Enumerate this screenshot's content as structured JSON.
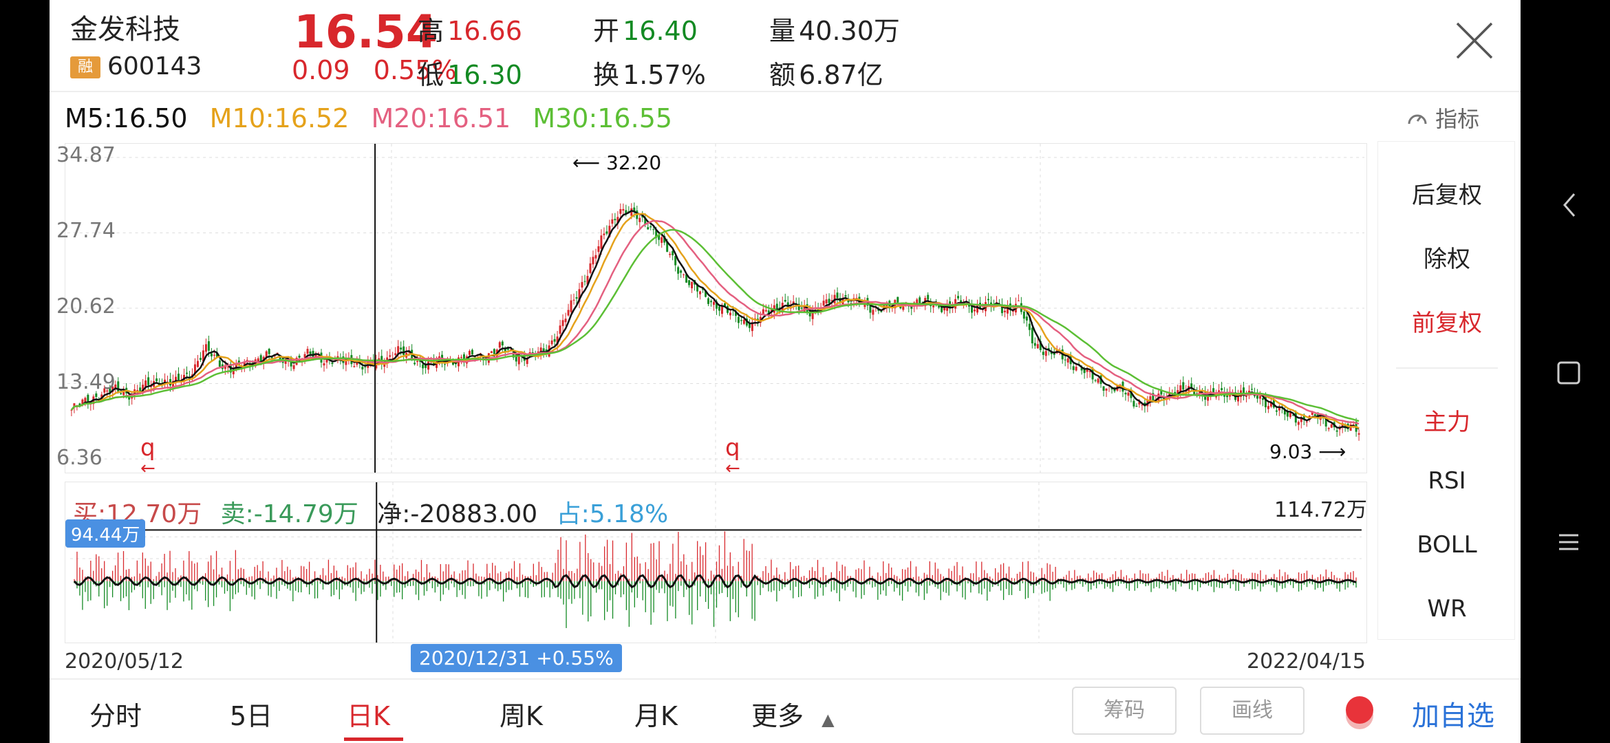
{
  "header": {
    "name": "金发科技",
    "badge": "融",
    "code": "600143",
    "price": "16.54",
    "change": "0.09",
    "change_pct": "0.55%",
    "high_label": "高",
    "high": "16.66",
    "low_label": "低",
    "low": "16.30",
    "open_label": "开",
    "open": "16.40",
    "turnover_label": "换",
    "turnover": "1.57%",
    "volume_label": "量",
    "volume": "40.30万",
    "amount_label": "额",
    "amount": "6.87亿"
  },
  "ma": {
    "m5": "M5:16.50",
    "m10": "M10:16.52",
    "m20": "M20:16.51",
    "m30": "M30:16.55"
  },
  "indicator_label": "指标",
  "price_axis": [
    "34.87",
    "27.74",
    "20.62",
    "13.49",
    "6.36"
  ],
  "annotations": {
    "max_label": "32.20",
    "min_label": "9.03",
    "q_mark": "q"
  },
  "side_panel": {
    "items": [
      {
        "label": "后复权",
        "active": false
      },
      {
        "label": "除权",
        "active": false
      },
      {
        "label": "前复权",
        "active": true
      },
      {
        "label": "主力",
        "active": true
      },
      {
        "label": "RSI",
        "active": false
      },
      {
        "label": "BOLL",
        "active": false
      },
      {
        "label": "WR",
        "active": false
      }
    ]
  },
  "volume": {
    "buy": "买:12.70万",
    "sell": "卖:-14.79万",
    "net": "净:-20883.00",
    "share": "占:5.18%",
    "max": "114.72万",
    "cursor_value": "94.44万"
  },
  "dates": {
    "start": "2020/05/12",
    "end": "2022/04/15",
    "cursor": "2020/12/31  +0.55%"
  },
  "tabs": [
    {
      "label": "分时",
      "active": false
    },
    {
      "label": "5日",
      "active": false
    },
    {
      "label": "日K",
      "active": true
    },
    {
      "label": "周K",
      "active": false
    },
    {
      "label": "月K",
      "active": false
    },
    {
      "label": "更多",
      "active": false
    }
  ],
  "buttons": {
    "chips": "筹码",
    "draw": "画线",
    "add_favorite": "加自选"
  },
  "colors": {
    "up": "#d8272c",
    "down": "#138a23",
    "accent": "#2a72d8"
  },
  "chart_data": {
    "type": "candlestick",
    "price_range": [
      6.36,
      34.87
    ],
    "start_date": "2020/05/12",
    "end_date": "2022/04/15",
    "highest": 32.2,
    "lowest": 9.03,
    "close_path": [
      11.0,
      11.8,
      12.6,
      12.9,
      12.5,
      13.2,
      13.8,
      13.5,
      14.4,
      16.8,
      15.4,
      14.9,
      15.3,
      16.3,
      15.8,
      15.6,
      16.2,
      15.9,
      15.5,
      15.7,
      15.0,
      15.6,
      16.7,
      15.8,
      15.3,
      15.5,
      15.8,
      16.0,
      16.2,
      16.9,
      16.1,
      16.0,
      16.6,
      18.6,
      21.5,
      24.5,
      27.5,
      30.0,
      29.4,
      28.6,
      26.6,
      24.4,
      22.6,
      21.5,
      20.6,
      19.6,
      19.2,
      20.2,
      21.2,
      20.6,
      20.4,
      21.0,
      21.8,
      21.2,
      20.6,
      20.8,
      20.9,
      21.2,
      21.0,
      20.8,
      21.1,
      20.7,
      20.9,
      20.6,
      20.9,
      17.4,
      16.4,
      16.0,
      15.1,
      14.0,
      13.2,
      12.8,
      11.6,
      11.8,
      12.5,
      12.9,
      12.7,
      12.4,
      12.4,
      12.6,
      12.3,
      11.6,
      10.5,
      10.2,
      10.4,
      9.6,
      9.3,
      9.1
    ]
  }
}
